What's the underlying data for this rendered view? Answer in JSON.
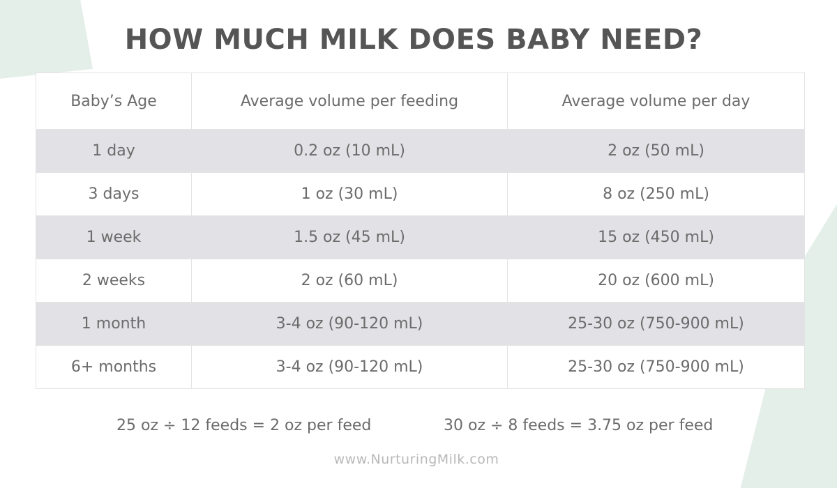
{
  "title": "HOW MUCH MILK DOES BABY NEED?",
  "table": {
    "headers": [
      "Baby’s Age",
      "Average volume per feeding",
      "Average volume per day"
    ],
    "rows": [
      [
        "1 day",
        "0.2 oz (10 mL)",
        "2 oz (50 mL)"
      ],
      [
        "3 days",
        "1 oz (30 mL)",
        "8 oz (250 mL)"
      ],
      [
        "1 week",
        "1.5 oz (45 mL)",
        "15 oz (450 mL)"
      ],
      [
        "2 weeks",
        "2 oz (60 mL)",
        "20 oz (600 mL)"
      ],
      [
        "1 month",
        "3-4 oz (90-120 mL)",
        "25-30 oz (750-900 mL)"
      ],
      [
        "6+ months",
        "3-4 oz (90-120 mL)",
        "25-30 oz (750-900 mL)"
      ]
    ]
  },
  "formulas": {
    "left": "25 oz ÷ 12 feeds = 2 oz per feed",
    "right": "30 oz ÷ 8 feeds = 3.75 oz per feed"
  },
  "website": "www.NurturingMilk.com",
  "colors": {
    "title": "#555555",
    "text": "#6b6b6b",
    "row_shade": "#e2e2e6",
    "background_accent": "#e4efe9",
    "website": "#b8b8b8"
  }
}
